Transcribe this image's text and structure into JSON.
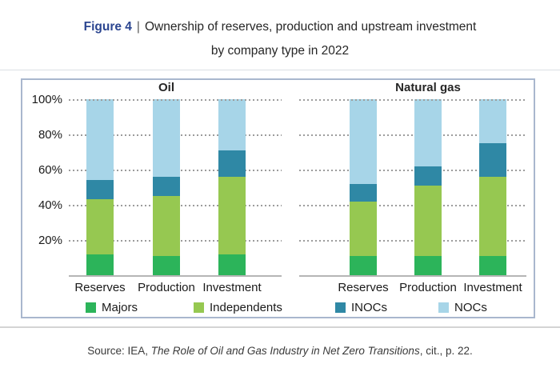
{
  "figure": {
    "label": "Figure 4",
    "separator": "|",
    "title_line1": "Ownership of reserves, production and upstream investment",
    "title_line2": "by company type in 2022"
  },
  "source": {
    "prefix": "Source: IEA, ",
    "italic": "The Role of Oil and Gas Industry in Net Zero Transitions",
    "suffix": ", cit., p. 22."
  },
  "colors": {
    "figure_label_blue": "#2B4590",
    "box_border": "#A9B7CE",
    "gridline": "#9C9C9C",
    "baseline": "#B5B5B5",
    "text": "#262626"
  },
  "chart_data": {
    "type": "bar",
    "stacked": true,
    "unit": "% share",
    "title": "Ownership of reserves, production and upstream investment by company type in 2022",
    "y_axis": {
      "range": [
        0,
        100
      ],
      "ticks": [
        20,
        40,
        60,
        80,
        100
      ],
      "tick_labels": [
        "20%",
        "40%",
        "60%",
        "80%",
        "100%"
      ],
      "gridlines": "dotted"
    },
    "legend_position": "bottom",
    "legend": [
      "Majors",
      "Independents",
      "INOCs",
      "NOCs"
    ],
    "series_colors": {
      "Majors": "#2CB45A",
      "Independents": "#96C851",
      "INOCs": "#2F88A5",
      "NOCs": "#A7D5E8"
    },
    "panels": [
      {
        "title": "Oil",
        "categories": [
          "Reserves",
          "Production",
          "Investment"
        ],
        "series": [
          {
            "name": "Majors",
            "values": [
              12,
              11,
              12
            ]
          },
          {
            "name": "Independents",
            "values": [
              31,
              34,
              44
            ]
          },
          {
            "name": "INOCs",
            "values": [
              11,
              11,
              15
            ]
          },
          {
            "name": "NOCs",
            "values": [
              46,
              44,
              29
            ]
          }
        ]
      },
      {
        "title": "Natural gas",
        "categories": [
          "Reserves",
          "Production",
          "Investment"
        ],
        "series": [
          {
            "name": "Majors",
            "values": [
              11,
              11,
              11
            ]
          },
          {
            "name": "Independents",
            "values": [
              31,
              40,
              45
            ]
          },
          {
            "name": "INOCs",
            "values": [
              10,
              11,
              19
            ]
          },
          {
            "name": "NOCs",
            "values": [
              48,
              38,
              25
            ]
          }
        ]
      }
    ]
  }
}
